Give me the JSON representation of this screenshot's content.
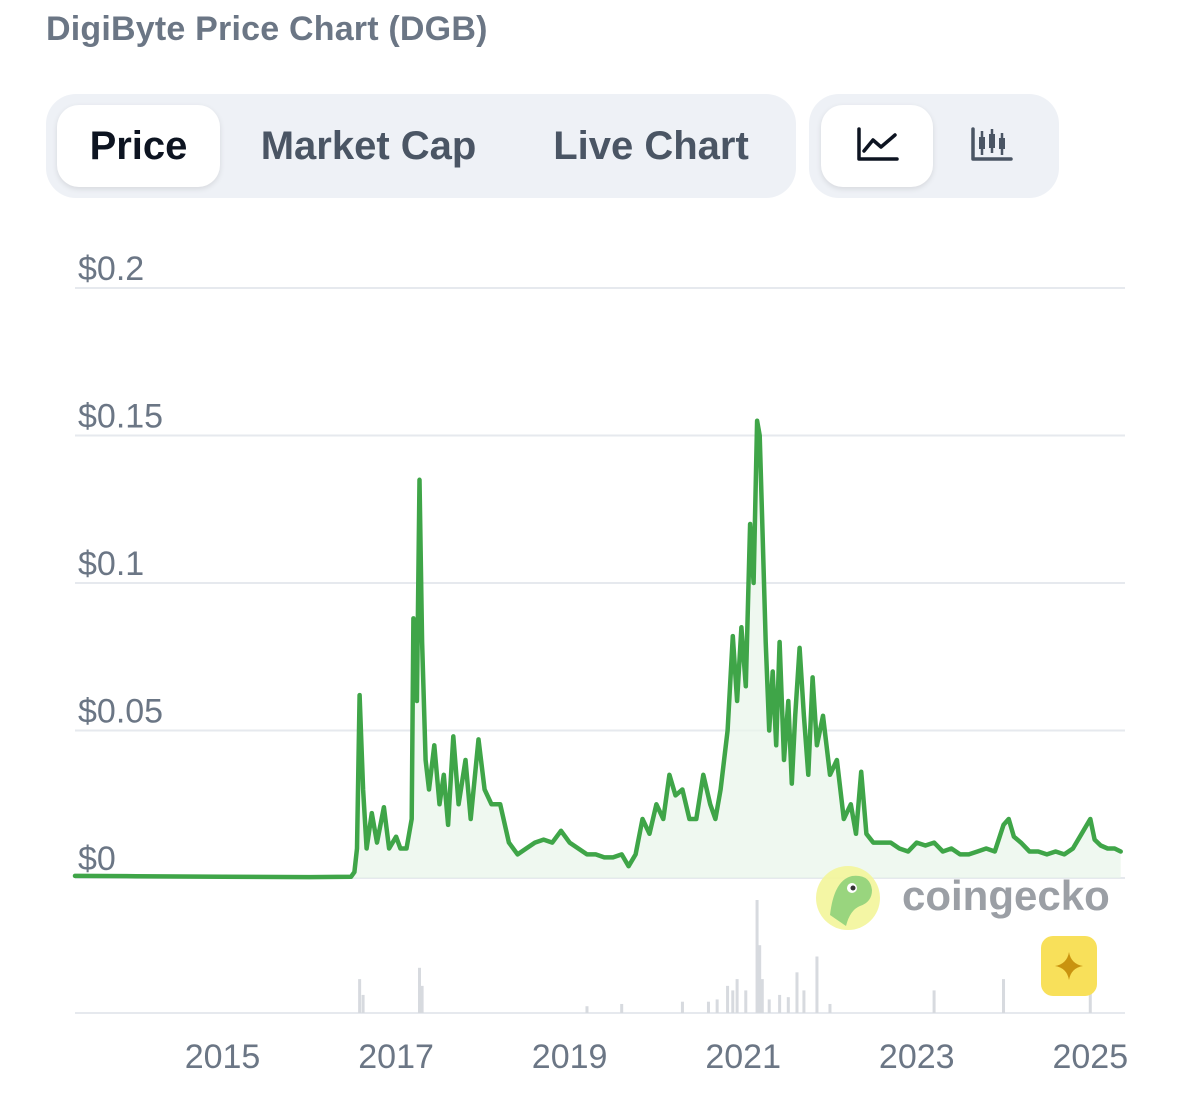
{
  "header": {
    "title": "DigiByte Price Chart (DGB)"
  },
  "tabs": [
    {
      "label": "Price",
      "active": true
    },
    {
      "label": "Market Cap",
      "active": false
    },
    {
      "label": "Live Chart",
      "active": false
    }
  ],
  "view_toggle": {
    "line_icon": "line-chart-icon",
    "candle_icon": "candlestick-icon",
    "active": "line"
  },
  "watermark": {
    "text": "coingecko",
    "logo_icon": "gecko-logo-icon"
  },
  "ai_button": {
    "icon": "sparkle-icon",
    "color": "#f8e05a"
  },
  "colors": {
    "line": "#3fa548",
    "fill": "#e8f5ea",
    "grid": "#e6e9ee",
    "axis_text": "#6b7685",
    "volume": "#d7dadf"
  },
  "chart_data": {
    "type": "line",
    "title": "DigiByte Price Chart (DGB)",
    "xlabel": "",
    "ylabel": "",
    "ylim": [
      0,
      0.2
    ],
    "xlim": [
      2013.3,
      2025.4
    ],
    "y_ticks": [
      {
        "value": 0.2,
        "label": "$0.2"
      },
      {
        "value": 0.15,
        "label": "$0.15"
      },
      {
        "value": 0.1,
        "label": "$0.1"
      },
      {
        "value": 0.05,
        "label": "$0.05"
      },
      {
        "value": 0,
        "label": "$0"
      }
    ],
    "x_ticks": [
      {
        "value": 2015,
        "label": "2015"
      },
      {
        "value": 2017,
        "label": "2017"
      },
      {
        "value": 2019,
        "label": "2019"
      },
      {
        "value": 2021,
        "label": "2021"
      },
      {
        "value": 2023,
        "label": "2023"
      },
      {
        "value": 2025,
        "label": "2025"
      }
    ],
    "grid": true,
    "series": [
      {
        "values": [
          [
            2013.3,
            0.0007
          ],
          [
            2014.0,
            0.0006
          ],
          [
            2015.0,
            0.0004
          ],
          [
            2016.0,
            0.0003
          ],
          [
            2016.48,
            0.0004
          ],
          [
            2016.52,
            0.002
          ],
          [
            2016.55,
            0.01
          ],
          [
            2016.58,
            0.062
          ],
          [
            2016.62,
            0.03
          ],
          [
            2016.66,
            0.01
          ],
          [
            2016.72,
            0.022
          ],
          [
            2016.78,
            0.012
          ],
          [
            2016.86,
            0.024
          ],
          [
            2016.92,
            0.01
          ],
          [
            2017.0,
            0.014
          ],
          [
            2017.05,
            0.01
          ],
          [
            2017.12,
            0.01
          ],
          [
            2017.18,
            0.02
          ],
          [
            2017.2,
            0.088
          ],
          [
            2017.24,
            0.06
          ],
          [
            2017.27,
            0.135
          ],
          [
            2017.3,
            0.08
          ],
          [
            2017.34,
            0.04
          ],
          [
            2017.38,
            0.03
          ],
          [
            2017.44,
            0.045
          ],
          [
            2017.5,
            0.025
          ],
          [
            2017.55,
            0.035
          ],
          [
            2017.6,
            0.018
          ],
          [
            2017.66,
            0.048
          ],
          [
            2017.72,
            0.025
          ],
          [
            2017.8,
            0.04
          ],
          [
            2017.86,
            0.02
          ],
          [
            2017.95,
            0.047
          ],
          [
            2018.02,
            0.03
          ],
          [
            2018.1,
            0.025
          ],
          [
            2018.2,
            0.025
          ],
          [
            2018.3,
            0.012
          ],
          [
            2018.4,
            0.008
          ],
          [
            2018.5,
            0.01
          ],
          [
            2018.6,
            0.012
          ],
          [
            2018.7,
            0.013
          ],
          [
            2018.8,
            0.012
          ],
          [
            2018.9,
            0.016
          ],
          [
            2019.0,
            0.012
          ],
          [
            2019.1,
            0.01
          ],
          [
            2019.2,
            0.008
          ],
          [
            2019.3,
            0.008
          ],
          [
            2019.4,
            0.007
          ],
          [
            2019.5,
            0.007
          ],
          [
            2019.6,
            0.008
          ],
          [
            2019.68,
            0.004
          ],
          [
            2019.76,
            0.008
          ],
          [
            2019.84,
            0.02
          ],
          [
            2019.92,
            0.015
          ],
          [
            2020.0,
            0.025
          ],
          [
            2020.08,
            0.02
          ],
          [
            2020.15,
            0.035
          ],
          [
            2020.22,
            0.028
          ],
          [
            2020.3,
            0.03
          ],
          [
            2020.38,
            0.02
          ],
          [
            2020.46,
            0.02
          ],
          [
            2020.54,
            0.035
          ],
          [
            2020.62,
            0.025
          ],
          [
            2020.68,
            0.02
          ],
          [
            2020.74,
            0.03
          ],
          [
            2020.82,
            0.05
          ],
          [
            2020.88,
            0.082
          ],
          [
            2020.93,
            0.06
          ],
          [
            2020.98,
            0.085
          ],
          [
            2021.03,
            0.065
          ],
          [
            2021.08,
            0.12
          ],
          [
            2021.12,
            0.1
          ],
          [
            2021.16,
            0.155
          ],
          [
            2021.19,
            0.15
          ],
          [
            2021.22,
            0.12
          ],
          [
            2021.26,
            0.08
          ],
          [
            2021.3,
            0.05
          ],
          [
            2021.34,
            0.07
          ],
          [
            2021.38,
            0.045
          ],
          [
            2021.42,
            0.08
          ],
          [
            2021.47,
            0.04
          ],
          [
            2021.52,
            0.06
          ],
          [
            2021.56,
            0.032
          ],
          [
            2021.6,
            0.055
          ],
          [
            2021.65,
            0.078
          ],
          [
            2021.7,
            0.055
          ],
          [
            2021.75,
            0.035
          ],
          [
            2021.8,
            0.068
          ],
          [
            2021.85,
            0.045
          ],
          [
            2021.92,
            0.055
          ],
          [
            2022.0,
            0.035
          ],
          [
            2022.08,
            0.04
          ],
          [
            2022.16,
            0.02
          ],
          [
            2022.24,
            0.025
          ],
          [
            2022.3,
            0.015
          ],
          [
            2022.36,
            0.036
          ],
          [
            2022.42,
            0.015
          ],
          [
            2022.5,
            0.012
          ],
          [
            2022.6,
            0.012
          ],
          [
            2022.7,
            0.012
          ],
          [
            2022.8,
            0.01
          ],
          [
            2022.9,
            0.009
          ],
          [
            2023.0,
            0.012
          ],
          [
            2023.1,
            0.011
          ],
          [
            2023.2,
            0.012
          ],
          [
            2023.3,
            0.009
          ],
          [
            2023.4,
            0.01
          ],
          [
            2023.5,
            0.008
          ],
          [
            2023.6,
            0.008
          ],
          [
            2023.7,
            0.009
          ],
          [
            2023.8,
            0.01
          ],
          [
            2023.9,
            0.009
          ],
          [
            2024.0,
            0.018
          ],
          [
            2024.06,
            0.02
          ],
          [
            2024.12,
            0.014
          ],
          [
            2024.2,
            0.012
          ],
          [
            2024.3,
            0.009
          ],
          [
            2024.4,
            0.009
          ],
          [
            2024.5,
            0.008
          ],
          [
            2024.6,
            0.009
          ],
          [
            2024.7,
            0.008
          ],
          [
            2024.8,
            0.01
          ],
          [
            2024.9,
            0.015
          ],
          [
            2025.0,
            0.02
          ],
          [
            2025.05,
            0.013
          ],
          [
            2025.12,
            0.011
          ],
          [
            2025.2,
            0.01
          ],
          [
            2025.28,
            0.01
          ],
          [
            2025.35,
            0.009
          ]
        ]
      }
    ],
    "volume": {
      "values": [
        [
          2016.58,
          0.015
        ],
        [
          2016.62,
          0.008
        ],
        [
          2017.27,
          0.02
        ],
        [
          2017.3,
          0.012
        ],
        [
          2019.2,
          0.003
        ],
        [
          2019.6,
          0.004
        ],
        [
          2020.3,
          0.005
        ],
        [
          2020.6,
          0.005
        ],
        [
          2020.7,
          0.006
        ],
        [
          2020.82,
          0.012
        ],
        [
          2020.88,
          0.01
        ],
        [
          2020.93,
          0.015
        ],
        [
          2021.03,
          0.01
        ],
        [
          2021.16,
          0.05
        ],
        [
          2021.19,
          0.03
        ],
        [
          2021.22,
          0.015
        ],
        [
          2021.3,
          0.006
        ],
        [
          2021.42,
          0.008
        ],
        [
          2021.52,
          0.007
        ],
        [
          2021.62,
          0.018
        ],
        [
          2021.7,
          0.01
        ],
        [
          2021.85,
          0.025
        ],
        [
          2022.0,
          0.004
        ],
        [
          2023.2,
          0.01
        ],
        [
          2024.0,
          0.015
        ],
        [
          2025.0,
          0.012
        ]
      ]
    }
  }
}
